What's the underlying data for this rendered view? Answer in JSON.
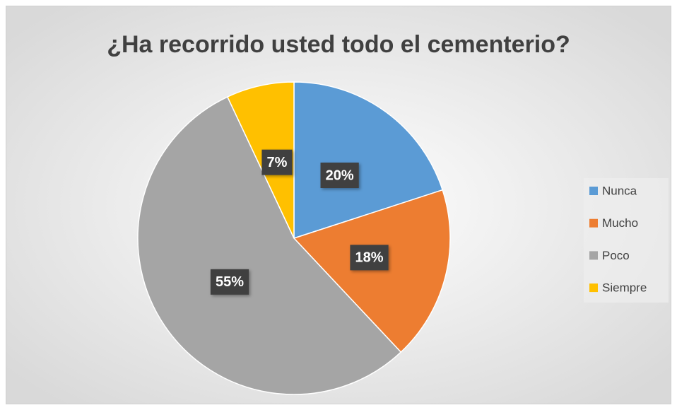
{
  "chart_data": {
    "type": "pie",
    "title": "¿Ha recorrido usted todo el cementerio?",
    "categories": [
      "Nunca",
      "Mucho",
      "Poco",
      "Siempre"
    ],
    "values": [
      20,
      18,
      55,
      7
    ],
    "value_labels": [
      "20%",
      "18%",
      "55%",
      "7%"
    ],
    "colors": [
      "#5b9bd5",
      "#ed7d31",
      "#a5a5a5",
      "#ffc000"
    ],
    "legend": "right"
  }
}
